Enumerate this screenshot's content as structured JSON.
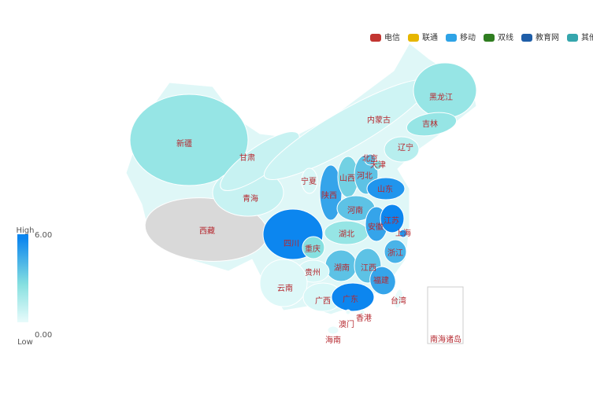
{
  "chart_data": {
    "type": "map",
    "legend": [
      {
        "name": "电信",
        "color": "#c23531"
      },
      {
        "name": "联通",
        "color": "#e6b600"
      },
      {
        "name": "移动",
        "color": "#2ea3e6"
      },
      {
        "name": "双线",
        "color": "#2f7d20"
      },
      {
        "name": "教育网",
        "color": "#1f5ea8"
      },
      {
        "name": "其他",
        "color": "#35a6ad"
      }
    ],
    "visual_map": {
      "min": {
        "value": 0,
        "label": "0.00"
      },
      "max": {
        "value": 6,
        "label": "6.00"
      },
      "high_text": "High",
      "low_text": "Low",
      "colors": [
        "#e8fbfb",
        "#86e0e0",
        "#0c86ef"
      ],
      "null_color": "#d9d9d9"
    },
    "regions": [
      {
        "name": "新疆",
        "value": 2.5
      },
      {
        "name": "西藏",
        "value": null
      },
      {
        "name": "青海",
        "value": 1
      },
      {
        "name": "甘肃",
        "value": 1
      },
      {
        "name": "内蒙古",
        "value": 0.8
      },
      {
        "name": "黑龙江",
        "value": 2.5
      },
      {
        "name": "吉林",
        "value": 2.5
      },
      {
        "name": "辽宁",
        "value": 1.5
      },
      {
        "name": "宁夏",
        "value": 0.5
      },
      {
        "name": "陕西",
        "value": 5
      },
      {
        "name": "山西",
        "value": 3.5
      },
      {
        "name": "河北",
        "value": 4
      },
      {
        "name": "北京",
        "value": 4
      },
      {
        "name": "天津",
        "value": 3
      },
      {
        "name": "山东",
        "value": 5.5
      },
      {
        "name": "河南",
        "value": 4
      },
      {
        "name": "四川",
        "value": 6
      },
      {
        "name": "重庆",
        "value": 3
      },
      {
        "name": "湖北",
        "value": 2.5
      },
      {
        "name": "安徽",
        "value": 5
      },
      {
        "name": "江苏",
        "value": 6
      },
      {
        "name": "上海",
        "value": 5.5
      },
      {
        "name": "浙江",
        "value": 4.5
      },
      {
        "name": "湖南",
        "value": 4
      },
      {
        "name": "江西",
        "value": 4
      },
      {
        "name": "福建",
        "value": 5
      },
      {
        "name": "贵州",
        "value": 0.5
      },
      {
        "name": "云南",
        "value": 0.3
      },
      {
        "name": "广西",
        "value": 0.5
      },
      {
        "name": "广东",
        "value": 6
      },
      {
        "name": "台湾",
        "value": 0
      },
      {
        "name": "香港",
        "value": 0
      },
      {
        "name": "澳门",
        "value": 0
      },
      {
        "name": "海南",
        "value": 0
      }
    ],
    "inset_label": "南海诸岛"
  }
}
